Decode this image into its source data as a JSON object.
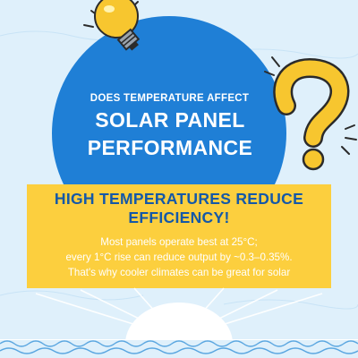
{
  "header": {
    "subtitle": "DOES TEMPERATURE AFFECT",
    "title_line1": "SOLAR PANEL",
    "title_line2": "PERFORMANCE"
  },
  "callout": {
    "heading_line1": "HIGH TEMPERATURES REDUCE",
    "heading_line2": "EFFICIENCY!",
    "body_line1": "Most panels operate best at 25°C;",
    "body_line2": "every 1°C rise can reduce output by ~0.3–0.35%.",
    "body_line3": "That's why cooler climates can be great for solar"
  },
  "decorations": {
    "lightbulb": "lightbulb-icon",
    "question_mark": "question-mark-icon",
    "sun": "rising-sun-icon",
    "waves": "waves-decoration"
  },
  "colors": {
    "background": "#dff0fb",
    "bubble": "#1f7fd6",
    "callout": "#fccf3e",
    "heading": "#1458a8",
    "accent_yellow": "#f7c62f"
  }
}
